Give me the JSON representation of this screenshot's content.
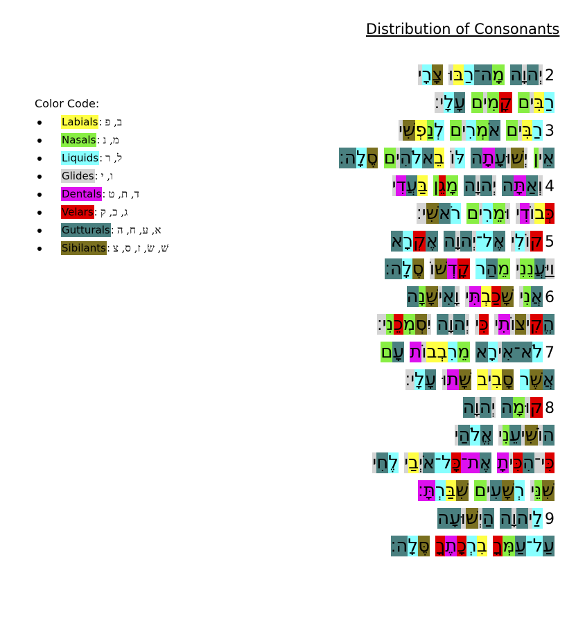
{
  "title": "Distribution of Consonants",
  "legend": {
    "heading": "Color Code:",
    "items": [
      {
        "name": "Labials",
        "letters": "ב, פ",
        "color": "#ffff44"
      },
      {
        "name": "Nasals",
        "letters": "מ, נ",
        "color": "#88ee44"
      },
      {
        "name": "Liquids",
        "letters": "ל, ר",
        "color": "#88ffff"
      },
      {
        "name": "Glides",
        "letters": "ו, י",
        "color": "#d4d4d4"
      },
      {
        "name": "Dentals",
        "letters": "ד, ת, ט",
        "color": "#dd11ee"
      },
      {
        "name": "Velars",
        "letters": "ג, כ, ק",
        "color": "#dd0000"
      },
      {
        "name": "Gutturals",
        "letters": "א, ע, ח, ה",
        "color": "#4a8080"
      },
      {
        "name": "Sibilants",
        "letters": "שׁ, שׂ, ז, ס, צ",
        "color": "#7a7020"
      }
    ]
  },
  "psalm_lines": [
    {
      "num": "2",
      "text": "יְהוָה מָה־רַבּוּ צָרָי"
    },
    {
      "num": "",
      "text": "רַבִּים קָמִים עָלָי׃"
    },
    {
      "num": "3",
      "text": "רַבִּים אֹמְרִים לְנַפְשִׁי"
    },
    {
      "num": "",
      "text": "אֵין יְשׁוּעָתָה לּוֹ בֵאלֹהִים סֶלָה׃"
    },
    {
      "num": "4",
      "text": "וְאַתָּה יְהוָה מָגֵן בַּעֲדִי"
    },
    {
      "num": "",
      "text": "כְּבוֹדִי וּמֵרִים רֹאשִׁי׃"
    },
    {
      "num": "5",
      "text": "קוֹלִי אֶל־יְהוָה אֶקְרָא"
    },
    {
      "num": "",
      "text": "וַיַּעֲנֵנִי מֵהַר קָדְשׁוֹ סֶלָה׃"
    },
    {
      "num": "6",
      "text": "אֲנִי שָׁכַבְתִּי וָאִישָׁנָה"
    },
    {
      "num": "",
      "text": "הֱקִיצוֹתִי כִּי יְהוָה יִסְמְכֵנִי׃"
    },
    {
      "num": "7",
      "text": "לֹא־אִירָא מֵרִבְבוֹת עָם"
    },
    {
      "num": "",
      "text": "אֲשֶׁר סָבִיב שָׁתוּ עָלָי׃"
    },
    {
      "num": "8",
      "text": "קוּמָה יְהוָה"
    },
    {
      "num": "",
      "text": "הוֹשִׁיעֵנִי אֱלֹהַי"
    },
    {
      "num": "",
      "text": "כִּי־הִכִּיתָ אֶת־כָּל־אֹיְבַי לֶחִי"
    },
    {
      "num": "",
      "text": "שִׁנֵּי רְשָׁעִים שִׁבַּרְתָּ׃"
    },
    {
      "num": "9",
      "text": "לַיהוָה הַיְשׁוּעָה"
    },
    {
      "num": "",
      "text": "עַל־עַמְּךָ בִרְכָתֶךָ סֶּלָה׃"
    }
  ]
}
